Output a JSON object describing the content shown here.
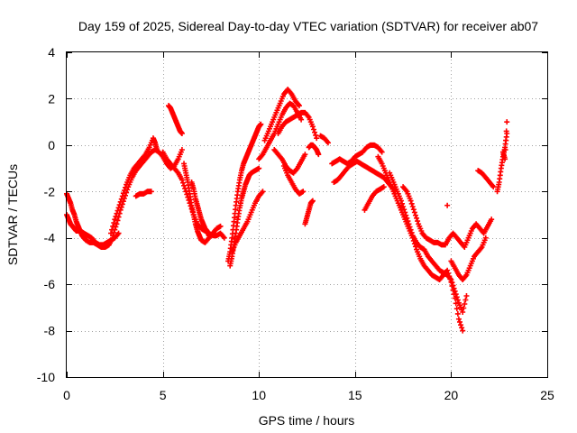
{
  "chart_data": {
    "type": "scatter",
    "title": "Day 159 of 2025, Sidereal Day-to-day VTEC variation (SDTVAR) for receiver ab07",
    "xlabel": "GPS time / hours",
    "ylabel": "SDTVAR / TECUs",
    "xlim": [
      0,
      25
    ],
    "ylim": [
      -10,
      4
    ],
    "xticks": [
      "0",
      "5",
      "10",
      "15",
      "20",
      "25"
    ],
    "yticks": [
      "4",
      "2",
      "0",
      "-2",
      "-4",
      "-6",
      "-8",
      "-10"
    ],
    "xtick_values": [
      0,
      5,
      10,
      15,
      20,
      25
    ],
    "ytick_values": [
      4,
      2,
      0,
      -2,
      -4,
      -6,
      -8,
      -10
    ],
    "grid": true,
    "marker": "+",
    "color": "#ff0000",
    "series": [
      {
        "name": "trace-a",
        "x": [
          0.0,
          0.1,
          0.2,
          0.3,
          0.4,
          0.5,
          0.7,
          0.9,
          1.1,
          1.3,
          1.5,
          1.7,
          1.9,
          2.1,
          2.3,
          2.5,
          2.7
        ],
        "y": [
          -3.0,
          -3.2,
          -3.4,
          -3.5,
          -3.6,
          -3.7,
          -3.7,
          -3.8,
          -3.9,
          -4.0,
          -4.2,
          -4.3,
          -4.3,
          -4.2,
          -4.1,
          -4.0,
          -3.8
        ]
      },
      {
        "name": "trace-b",
        "x": [
          0.0,
          0.1,
          0.2,
          0.3,
          0.4,
          0.5,
          0.6,
          0.7,
          0.8,
          0.9,
          1.0,
          1.2,
          1.4,
          1.6,
          1.8,
          2.0,
          2.2,
          2.4
        ],
        "y": [
          -2.1,
          -2.3,
          -2.5,
          -2.8,
          -3.0,
          -3.3,
          -3.5,
          -3.7,
          -3.9,
          -4.0,
          -4.1,
          -4.2,
          -4.2,
          -4.3,
          -4.4,
          -4.4,
          -4.3,
          -4.0
        ]
      },
      {
        "name": "trace-c",
        "x": [
          2.3,
          2.5,
          2.7,
          2.9,
          3.1,
          3.3,
          3.5,
          3.7,
          3.9,
          4.1,
          4.3,
          4.5,
          4.6,
          4.7
        ],
        "y": [
          -3.8,
          -3.2,
          -2.7,
          -2.2,
          -1.7,
          -1.3,
          -1.0,
          -0.8,
          -0.6,
          -0.4,
          -0.1,
          0.3,
          0.1,
          -0.2
        ]
      },
      {
        "name": "trace-d",
        "x": [
          2.4,
          2.6,
          2.8,
          3.0,
          3.2,
          3.4,
          3.6,
          3.8,
          4.0,
          4.2,
          4.4,
          4.6,
          4.8,
          5.0,
          5.2,
          5.4,
          5.6,
          5.8,
          6.0
        ],
        "y": [
          -3.9,
          -3.4,
          -2.8,
          -2.3,
          -1.8,
          -1.4,
          -1.1,
          -0.9,
          -0.7,
          -0.5,
          -0.3,
          -0.2,
          -0.3,
          -0.5,
          -0.8,
          -1.0,
          -0.9,
          -0.6,
          -0.2
        ]
      },
      {
        "name": "trace-e",
        "x": [
          3.6,
          3.8,
          4.0,
          4.2,
          4.4
        ],
        "y": [
          -2.2,
          -2.1,
          -2.1,
          -2.0,
          -2.0
        ]
      },
      {
        "name": "trace-f",
        "x": [
          5.3,
          5.4,
          5.5,
          5.6,
          5.7,
          5.8,
          5.9,
          6.0
        ],
        "y": [
          1.7,
          1.6,
          1.4,
          1.2,
          1.0,
          0.8,
          0.6,
          0.5
        ]
      },
      {
        "name": "trace-g",
        "x": [
          5.0,
          5.2,
          5.4,
          5.6,
          5.8,
          6.0,
          6.2,
          6.4,
          6.6,
          6.8,
          7.0,
          7.2,
          7.4,
          7.6,
          7.8,
          8.0,
          8.2
        ],
        "y": [
          -0.3,
          -0.6,
          -0.8,
          -1.0,
          -1.2,
          -1.5,
          -2.0,
          -2.5,
          -3.0,
          -3.4,
          -3.6,
          -3.7,
          -3.8,
          -3.9,
          -3.9,
          -3.8,
          -4.0
        ]
      },
      {
        "name": "trace-h",
        "x": [
          6.1,
          6.2,
          6.3,
          6.4,
          6.5,
          6.6,
          6.7,
          6.8,
          6.9,
          7.0,
          7.2,
          7.4,
          7.6,
          7.8,
          8.0
        ],
        "y": [
          -0.8,
          -1.2,
          -1.6,
          -2.1,
          -2.6,
          -3.0,
          -3.4,
          -3.7,
          -3.9,
          -4.1,
          -4.2,
          -4.0,
          -3.8,
          -3.6,
          -3.5
        ]
      },
      {
        "name": "trace-i",
        "x": [
          6.5,
          6.6,
          6.7,
          6.8,
          6.9,
          7.0,
          7.1,
          7.2,
          7.3,
          7.4
        ],
        "y": [
          -1.6,
          -1.9,
          -2.3,
          -2.6,
          -2.9,
          -3.2,
          -3.4,
          -3.6,
          -3.7,
          -3.9
        ]
      },
      {
        "name": "trace-j",
        "x": [
          8.4,
          8.5,
          8.6,
          8.7,
          8.8,
          8.9,
          9.0,
          9.1,
          9.2,
          9.3,
          9.4,
          9.5,
          9.6,
          9.7,
          9.8,
          9.9,
          10.0,
          10.1
        ],
        "y": [
          -5.0,
          -4.6,
          -4.0,
          -3.3,
          -2.6,
          -2.0,
          -1.5,
          -1.1,
          -0.8,
          -0.6,
          -0.4,
          -0.2,
          0.0,
          0.2,
          0.4,
          0.6,
          0.8,
          0.9
        ]
      },
      {
        "name": "trace-k",
        "x": [
          8.5,
          8.6,
          8.7,
          8.8,
          8.9,
          9.0,
          9.1,
          9.2,
          9.3,
          9.4,
          9.5,
          9.6,
          9.8,
          10.0
        ],
        "y": [
          -5.2,
          -4.8,
          -4.3,
          -3.8,
          -3.2,
          -2.7,
          -2.3,
          -2.0,
          -1.7,
          -1.5,
          -1.3,
          -1.2,
          -1.1,
          -1.0
        ]
      },
      {
        "name": "trace-l",
        "x": [
          8.6,
          8.8,
          9.0,
          9.2,
          9.4,
          9.6,
          9.8,
          10.0,
          10.2
        ],
        "y": [
          -4.6,
          -4.2,
          -3.9,
          -3.6,
          -3.3,
          -2.9,
          -2.5,
          -2.2,
          -2.0
        ]
      },
      {
        "name": "trace-m",
        "x": [
          10.3,
          10.5,
          10.7,
          10.9,
          11.1,
          11.3,
          11.5,
          11.7,
          11.9,
          12.1
        ],
        "y": [
          0.2,
          0.6,
          1.0,
          1.4,
          1.8,
          2.2,
          2.4,
          2.2,
          1.9,
          1.7
        ]
      },
      {
        "name": "trace-n",
        "x": [
          10.0,
          10.2,
          10.4,
          10.6,
          10.8,
          11.0,
          11.2,
          11.4,
          11.6,
          11.8,
          12.0,
          12.2
        ],
        "y": [
          -0.6,
          -0.4,
          -0.1,
          0.2,
          0.5,
          0.9,
          1.3,
          1.6,
          1.8,
          1.7,
          1.4,
          1.1
        ]
      },
      {
        "name": "trace-o",
        "x": [
          11.0,
          11.2,
          11.4,
          11.6,
          11.8,
          12.0,
          12.2,
          12.4,
          12.6,
          12.8,
          13.0
        ],
        "y": [
          0.5,
          0.8,
          1.0,
          1.1,
          1.2,
          1.3,
          1.4,
          1.4,
          1.2,
          0.8,
          0.3
        ]
      },
      {
        "name": "trace-p",
        "x": [
          10.8,
          11.0,
          11.2,
          11.4,
          11.6,
          11.8,
          12.0,
          12.2,
          12.4
        ],
        "y": [
          -0.2,
          -0.4,
          -0.6,
          -0.9,
          -1.1,
          -1.2,
          -1.0,
          -0.7,
          -0.4
        ]
      },
      {
        "name": "trace-q",
        "x": [
          11.3,
          11.5,
          11.7,
          11.9,
          12.1,
          12.3
        ],
        "y": [
          -0.9,
          -1.3,
          -1.6,
          -1.9,
          -2.1,
          -2.0
        ]
      },
      {
        "name": "trace-r",
        "x": [
          12.4,
          12.5,
          12.6,
          12.7,
          12.8
        ],
        "y": [
          -3.4,
          -3.1,
          -2.8,
          -2.5,
          -2.4
        ]
      },
      {
        "name": "trace-s",
        "x": [
          12.6,
          12.7,
          12.8,
          12.9,
          13.0,
          13.1
        ],
        "y": [
          -0.1,
          0.0,
          0.0,
          -0.1,
          -0.2,
          -0.4
        ]
      },
      {
        "name": "trace-t",
        "x": [
          13.2,
          13.4,
          13.6
        ],
        "y": [
          0.4,
          0.3,
          0.1
        ]
      },
      {
        "name": "trace-u",
        "x": [
          13.8,
          14.0,
          14.2,
          14.4,
          14.6,
          14.8,
          15.0,
          15.2,
          15.4,
          15.6,
          15.8,
          16.0,
          16.2,
          16.4
        ],
        "y": [
          -0.8,
          -0.7,
          -0.6,
          -0.7,
          -0.8,
          -0.7,
          -0.5,
          -0.4,
          -0.3,
          -0.1,
          0.0,
          0.0,
          -0.1,
          -0.3
        ]
      },
      {
        "name": "trace-v",
        "x": [
          13.9,
          14.1,
          14.3,
          14.5,
          14.7,
          14.9,
          15.1,
          15.3,
          15.5,
          15.7,
          15.9,
          16.1,
          16.3,
          16.5,
          16.7,
          16.9,
          17.1
        ],
        "y": [
          -1.6,
          -1.5,
          -1.3,
          -1.1,
          -0.9,
          -0.8,
          -0.7,
          -0.8,
          -0.9,
          -1.0,
          -1.1,
          -1.2,
          -1.3,
          -1.4,
          -1.6,
          -1.8,
          -2.0
        ]
      },
      {
        "name": "trace-w",
        "x": [
          15.5,
          15.7,
          15.9,
          16.1,
          16.3,
          16.5
        ],
        "y": [
          -2.8,
          -2.5,
          -2.2,
          -2.0,
          -1.9,
          -1.8
        ]
      },
      {
        "name": "trace-x",
        "x": [
          16.2,
          16.4,
          16.6,
          16.8,
          17.0,
          17.2,
          17.4,
          17.6,
          17.8,
          18.0,
          18.2,
          18.4,
          18.6,
          18.8,
          19.0,
          19.2,
          19.4,
          19.6,
          19.8,
          20.0,
          20.2,
          20.4,
          20.6
        ],
        "y": [
          -0.5,
          -0.8,
          -1.2,
          -1.6,
          -2.0,
          -2.4,
          -2.8,
          -3.2,
          -3.6,
          -4.0,
          -4.5,
          -4.9,
          -5.2,
          -5.4,
          -5.6,
          -5.7,
          -5.8,
          -5.6,
          -5.4,
          -5.9,
          -6.6,
          -7.5,
          -8.0
        ]
      },
      {
        "name": "trace-y",
        "x": [
          16.8,
          17.0,
          17.2,
          17.4,
          17.6,
          17.8,
          18.0,
          18.2,
          18.4,
          18.6,
          18.8,
          19.0,
          19.2,
          19.4,
          19.6,
          19.8,
          20.0,
          20.2,
          20.4,
          20.6,
          20.8
        ],
        "y": [
          -1.2,
          -1.6,
          -2.0,
          -2.4,
          -2.9,
          -3.4,
          -3.9,
          -4.2,
          -4.4,
          -4.5,
          -4.8,
          -5.0,
          -5.2,
          -5.4,
          -5.5,
          -5.6,
          -5.8,
          -6.3,
          -6.8,
          -7.2,
          -6.5
        ]
      },
      {
        "name": "trace-z",
        "x": [
          17.5,
          17.7,
          17.9,
          18.1,
          18.3,
          18.5,
          18.7,
          18.9,
          19.1,
          19.3,
          19.5,
          19.7,
          19.9,
          20.1,
          20.3,
          20.5,
          20.7,
          20.9,
          21.1,
          21.3,
          21.5,
          21.7,
          21.9,
          22.1
        ],
        "y": [
          -1.8,
          -2.0,
          -2.4,
          -2.9,
          -3.4,
          -3.8,
          -4.0,
          -4.1,
          -4.2,
          -4.2,
          -4.3,
          -4.3,
          -4.0,
          -3.8,
          -4.0,
          -4.2,
          -4.4,
          -4.0,
          -3.6,
          -3.4,
          -3.6,
          -3.8,
          -3.5,
          -3.2
        ]
      },
      {
        "name": "trace-aa",
        "x": [
          20.0,
          20.2,
          20.4,
          20.6,
          20.8,
          21.0,
          21.2,
          21.4,
          21.6,
          21.8
        ],
        "y": [
          -5.0,
          -5.3,
          -5.6,
          -5.8,
          -5.6,
          -5.2,
          -4.8,
          -4.6,
          -4.4,
          -4.0
        ]
      },
      {
        "name": "trace-ab",
        "x": [
          19.8
        ],
        "y": [
          -2.6
        ]
      },
      {
        "name": "trace-ac",
        "x": [
          21.4,
          21.6,
          21.8,
          22.0,
          22.2
        ],
        "y": [
          -1.1,
          -1.2,
          -1.4,
          -1.6,
          -1.8
        ]
      },
      {
        "name": "trace-ad",
        "x": [
          22.4,
          22.5,
          22.6,
          22.7,
          22.8,
          22.9
        ],
        "y": [
          -2.0,
          -1.6,
          -1.0,
          -0.5,
          -0.1,
          0.5
        ]
      },
      {
        "name": "trace-ae",
        "x": [
          22.7,
          22.8,
          22.9
        ],
        "y": [
          -0.3,
          -0.6,
          1.0
        ]
      }
    ]
  }
}
